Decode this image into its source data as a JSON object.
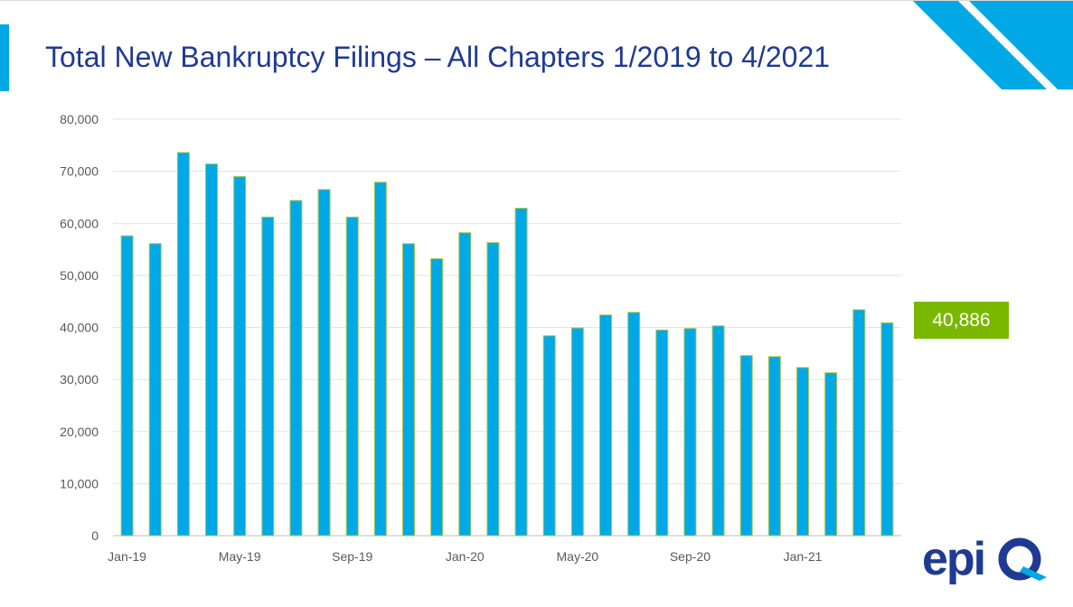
{
  "title": "Total New Bankruptcy Filings – All Chapters 1/2019 to 4/2021",
  "callout": {
    "value": "40,886",
    "color": "#7ab800"
  },
  "logo": {
    "text": "epiq",
    "color": "#1f3a93",
    "accent": "#00a9e6"
  },
  "colors": {
    "bar_fill": "#00a9e6",
    "bar_stroke": "#a8c94a",
    "title": "#1f3a93",
    "accent": "#00a9e6"
  },
  "chart_data": {
    "type": "bar",
    "title": "Total New Bankruptcy Filings – All Chapters 1/2019 to 4/2021",
    "xlabel": "",
    "ylabel": "",
    "ylim": [
      0,
      80000
    ],
    "grid": true,
    "y_ticks": [
      0,
      10000,
      20000,
      30000,
      40000,
      50000,
      60000,
      70000,
      80000
    ],
    "y_tick_labels": [
      "0",
      "10,000",
      "20,000",
      "30,000",
      "40,000",
      "50,000",
      "60,000",
      "70,000",
      "80,000"
    ],
    "x_tick_labels": [
      {
        "index": 0,
        "label": "Jan-19"
      },
      {
        "index": 4,
        "label": "May-19"
      },
      {
        "index": 8,
        "label": "Sep-19"
      },
      {
        "index": 12,
        "label": "Jan-20"
      },
      {
        "index": 16,
        "label": "May-20"
      },
      {
        "index": 20,
        "label": "Sep-20"
      },
      {
        "index": 24,
        "label": "Jan-21"
      }
    ],
    "categories": [
      "Jan-19",
      "Feb-19",
      "Mar-19",
      "Apr-19",
      "May-19",
      "Jun-19",
      "Jul-19",
      "Aug-19",
      "Sep-19",
      "Oct-19",
      "Nov-19",
      "Dec-19",
      "Jan-20",
      "Feb-20",
      "Mar-20",
      "Apr-20",
      "May-20",
      "Jun-20",
      "Jul-20",
      "Aug-20",
      "Sep-20",
      "Oct-20",
      "Nov-20",
      "Dec-20",
      "Jan-21",
      "Feb-21",
      "Mar-21",
      "Apr-21"
    ],
    "values": [
      57600,
      56100,
      73600,
      71400,
      69000,
      61200,
      64400,
      66500,
      61200,
      67900,
      56100,
      53200,
      58200,
      56300,
      62900,
      38400,
      39900,
      42400,
      42900,
      39500,
      39800,
      40300,
      34600,
      34400,
      32300,
      31300,
      43400,
      40886
    ]
  }
}
